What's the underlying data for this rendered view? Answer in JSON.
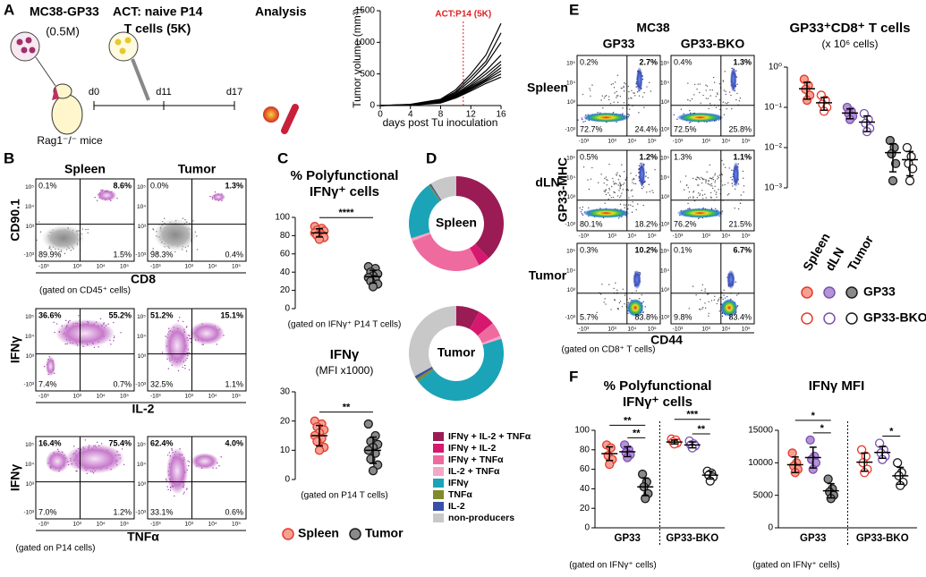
{
  "figure": {
    "A": {
      "label": "A",
      "tumor": "MC38-GP33",
      "tumor_dose": "(0.5M)",
      "act": "ACT: naive P14",
      "act_dose": "T cells (5K)",
      "analysis": "Analysis",
      "days": [
        "d0",
        "d11",
        "d17"
      ],
      "mice": "Rag1⁻/⁻ mice"
    },
    "B": {
      "label": "B",
      "columns": [
        "Spleen",
        "Tumor"
      ],
      "rows": [
        {
          "y_label": "CD90.1",
          "x_label": "CD8",
          "gate": "(gated on CD45⁺ cells)",
          "quadrants": [
            [
              "0.1%",
              "8.6%",
              "89.9%",
              "1.5%"
            ],
            [
              "0.0%",
              "1.3%",
              "98.3%",
              "0.4%"
            ]
          ]
        },
        {
          "y_label": "IFNγ",
          "x_label": "IL-2",
          "quadrants": [
            [
              "36.6%",
              "55.2%",
              "7.4%",
              "0.7%"
            ],
            [
              "51.2%",
              "15.1%",
              "32.5%",
              "1.1%"
            ]
          ]
        },
        {
          "y_label": "IFNγ",
          "x_label": "TNFα",
          "gate": "(gated on P14 cells)",
          "quadrants": [
            [
              "16.4%",
              "75.4%",
              "7.0%",
              "1.2%"
            ],
            [
              "62.4%",
              "4.0%",
              "33.1%",
              "0.6%"
            ]
          ]
        }
      ]
    },
    "C": {
      "label": "C"
    },
    "D": {
      "label": "D"
    },
    "E": {
      "label": "E",
      "title": "MC38",
      "columns": [
        "GP33",
        "GP33-BKO"
      ],
      "y_label": "GP33-MHC",
      "x_label": "CD44",
      "gate": "(gated on CD8⁺ T cells)",
      "rows": [
        {
          "name": "Spleen",
          "quadrants": [
            [
              "0.2%",
              "2.7%",
              "72.7%",
              "24.4%"
            ],
            [
              "0.4%",
              "1.3%",
              "72.5%",
              "25.8%"
            ]
          ]
        },
        {
          "name": "dLN",
          "quadrants": [
            [
              "0.5%",
              "1.2%",
              "80.1%",
              "18.2%"
            ],
            [
              "1.3%",
              "1.1%",
              "76.2%",
              "21.5%"
            ]
          ]
        },
        {
          "name": "Tumor",
          "quadrants": [
            [
              "0.3%",
              "10.2%",
              "5.7%",
              "83.8%"
            ],
            [
              "0.1%",
              "6.7%",
              "9.8%",
              "83.4%"
            ]
          ]
        }
      ]
    },
    "F": {
      "label": "F"
    },
    "flow_ticks": [
      "-10³",
      "10³",
      "10⁴",
      "10⁵"
    ]
  },
  "chart_data": [
    {
      "type": "line",
      "y_label": "Tumor volume (mm³)",
      "x_label": "days post Tu inoculation",
      "x": [
        0,
        4,
        8,
        10,
        12,
        14,
        16
      ],
      "series": [
        {
          "color": "#000000",
          "values": [
            0,
            20,
            100,
            250,
            500,
            800,
            1300
          ]
        },
        {
          "color": "#000000",
          "values": [
            0,
            15,
            90,
            220,
            450,
            700,
            1150
          ]
        },
        {
          "color": "#000000",
          "values": [
            0,
            15,
            80,
            200,
            400,
            650,
            1000
          ]
        },
        {
          "color": "#000000",
          "values": [
            0,
            10,
            70,
            180,
            350,
            550,
            800
          ]
        },
        {
          "color": "#000000",
          "values": [
            0,
            10,
            70,
            170,
            320,
            500,
            700
          ]
        },
        {
          "color": "#000000",
          "values": [
            0,
            12,
            60,
            160,
            300,
            450,
            650
          ]
        },
        {
          "color": "#000000",
          "values": [
            0,
            10,
            60,
            150,
            280,
            420,
            600
          ]
        },
        {
          "color": "#000000",
          "values": [
            0,
            8,
            50,
            140,
            270,
            400,
            550
          ]
        },
        {
          "color": "#000000",
          "values": [
            0,
            8,
            50,
            130,
            250,
            380,
            500
          ]
        },
        {
          "color": "#000000",
          "values": [
            0,
            5,
            40,
            120,
            230,
            350,
            450
          ]
        }
      ],
      "xlim": [
        0,
        16
      ],
      "ylim": [
        0,
        1500
      ],
      "xticks": [
        0,
        4,
        8,
        12,
        16
      ],
      "yticks": [
        0,
        500,
        1000,
        1500
      ],
      "annotation": {
        "text": "ACT:P14 (5K)",
        "x": 11,
        "color": "#e02020"
      }
    },
    {
      "type": "dot",
      "title": [
        "% Polyfunctional",
        "IFNγ⁺ cells"
      ],
      "note": "(gated on IFNγ⁺ P14 T cells)",
      "ylim": [
        0,
        100
      ],
      "yticks": [
        0,
        20,
        40,
        60,
        80,
        100
      ],
      "series": [
        {
          "name": "Spleen",
          "color": "#f6a091",
          "edge": "#e5392c",
          "values": [
            90,
            88,
            86,
            85,
            84,
            83,
            81,
            80,
            78,
            76
          ],
          "mean": 83,
          "sd": 4.5
        },
        {
          "name": "Tumor",
          "color": "#8a8a8a",
          "edge": "#1a1a1a",
          "values": [
            46,
            44,
            40,
            38,
            36,
            34,
            32,
            30,
            27,
            24
          ],
          "mean": 35,
          "sd": 7
        }
      ],
      "comparisons": [
        {
          "label": "****",
          "series": [
            0,
            1
          ]
        }
      ]
    },
    {
      "type": "dot",
      "title": [
        "IFNγ",
        "(MFI x1000)"
      ],
      "note": "(gated on P14 T cells)",
      "ylim": [
        0,
        30
      ],
      "yticks": [
        0,
        10,
        20,
        30
      ],
      "series": [
        {
          "name": "Spleen",
          "color": "#f6a091",
          "edge": "#e5392c",
          "values": [
            20,
            19,
            18,
            17,
            16,
            15,
            14,
            13,
            11,
            10
          ],
          "mean": 15,
          "sd": 3.5
        },
        {
          "name": "Tumor",
          "color": "#8a8a8a",
          "edge": "#1a1a1a",
          "values": [
            19,
            15,
            13,
            12,
            11,
            10,
            9,
            7,
            5,
            3
          ],
          "mean": 10,
          "sd": 4.5
        }
      ],
      "comparisons": [
        {
          "label": "**",
          "series": [
            0,
            1
          ]
        }
      ]
    },
    {
      "type": "pie",
      "donut": true,
      "categories": [
        "IFNγ + IL-2 + TNFα",
        "IFNγ + IL-2",
        "IFNγ + TNFα",
        "IL-2 + TNFα",
        "IFNγ",
        "TNFα",
        "IL-2",
        "non-producers"
      ],
      "colors": [
        "#9b1b55",
        "#d6186f",
        "#ef6a9f",
        "#f4a7c6",
        "#1ba3b8",
        "#7f8a2a",
        "#3a4fa8",
        "#c8c8c8"
      ],
      "series": [
        {
          "name": "Spleen",
          "values": [
            38,
            4,
            27,
            1,
            20,
            0.5,
            0.5,
            9
          ]
        },
        {
          "name": "Tumor",
          "values": [
            8,
            6,
            5,
            1,
            45,
            1,
            1,
            33
          ]
        }
      ]
    },
    {
      "type": "dot",
      "log": true,
      "title": [
        "GP33⁺CD8⁺ T cells",
        "(x 10⁶ cells)"
      ],
      "ylim": [
        0.001,
        1
      ],
      "yticks": [
        {
          "value": 0.001,
          "label": "10⁻³"
        },
        {
          "value": 0.01,
          "label": "10⁻²"
        },
        {
          "value": 0.1,
          "label": "10⁻¹"
        },
        {
          "value": 1,
          "label": "10⁰"
        }
      ],
      "categories": [
        "GP33",
        "GP33-BKO"
      ],
      "filled": [
        true,
        false
      ],
      "series": [
        {
          "name": "Spleen",
          "color": "#f6a091",
          "edge": "#e5392c",
          "values": [
            [
              0.5,
              0.35,
              0.28,
              0.2,
              0.15
            ],
            [
              0.2,
              0.15,
              0.12,
              0.1,
              0.08
            ]
          ],
          "mean": [
            0.29,
            0.13
          ],
          "sd": [
            0.13,
            0.045
          ]
        },
        {
          "name": "dLN",
          "color": "#b493d6",
          "edge": "#7b4fb0",
          "values": [
            [
              0.1,
              0.08,
              0.07,
              0.06,
              0.05
            ],
            [
              0.07,
              0.05,
              0.04,
              0.03,
              0.025
            ]
          ],
          "mean": [
            0.072,
            0.043
          ],
          "sd": [
            0.02,
            0.018
          ]
        },
        {
          "name": "Tumor",
          "color": "#8a8a8a",
          "edge": "#1a1a1a",
          "values": [
            [
              0.015,
              0.01,
              0.007,
              0.004,
              0.0015
            ],
            [
              0.01,
              0.006,
              0.004,
              0.003,
              0.0015
            ]
          ],
          "mean": [
            0.0075,
            0.005
          ],
          "sd": [
            0.005,
            0.003
          ]
        }
      ]
    },
    {
      "type": "dot",
      "title": [
        "% Polyfunctional",
        "IFNγ⁺ cells"
      ],
      "note": "(gated on IFNγ⁺ cells)",
      "ylim": [
        0,
        100
      ],
      "yticks": [
        0,
        20,
        40,
        60,
        80,
        100
      ],
      "categories": [
        "GP33",
        "GP33-BKO"
      ],
      "filled": [
        true,
        false
      ],
      "series": [
        {
          "color": "#f6a091",
          "edge": "#e5392c",
          "values": [
            [
              85,
              82,
              74,
              70,
              65
            ],
            [
              91,
              90,
              88,
              87,
              86
            ]
          ],
          "mean": [
            76,
            88
          ],
          "sd": [
            7,
            2
          ]
        },
        {
          "color": "#b493d6",
          "edge": "#7b4fb0",
          "values": [
            [
              85,
              80,
              77,
              75,
              72
            ],
            [
              89,
              86,
              85,
              84,
              82
            ]
          ],
          "mean": [
            78,
            85
          ],
          "sd": [
            5,
            3
          ]
        },
        {
          "color": "#8a8a8a",
          "edge": "#1a1a1a",
          "values": [
            [
              55,
              47,
              42,
              35,
              30
            ],
            [
              58,
              56,
              54,
              52,
              48
            ]
          ],
          "mean": [
            42,
            54
          ],
          "sd": [
            9,
            4
          ]
        }
      ],
      "comparisons": [
        {
          "label": "**",
          "category": 0,
          "series": [
            0,
            2
          ]
        },
        {
          "label": "**",
          "category": 0,
          "series": [
            1,
            2
          ]
        },
        {
          "label": "***",
          "category": 1,
          "series": [
            0,
            2
          ]
        },
        {
          "label": "**",
          "category": 1,
          "series": [
            1,
            2
          ]
        }
      ]
    },
    {
      "type": "dot",
      "title": [
        "IFNγ MFI"
      ],
      "note": "(gated on IFNγ⁺ cells)",
      "ylim": [
        0,
        15000
      ],
      "yticks": [
        0,
        5000,
        10000,
        15000
      ],
      "categories": [
        "GP33",
        "GP33-BKO"
      ],
      "filled": [
        true,
        false
      ],
      "series": [
        {
          "color": "#f6a091",
          "edge": "#e5392c",
          "values": [
            [
              11500,
              10000,
              9500,
              9000,
              8500
            ],
            [
              12000,
              11000,
              10000,
              9000,
              8500
            ]
          ],
          "mean": [
            9700,
            10100
          ],
          "sd": [
            1200,
            1400
          ]
        },
        {
          "color": "#b493d6",
          "edge": "#7b4fb0",
          "values": [
            [
              13500,
              11000,
              10500,
              10000,
              9000
            ],
            [
              13000,
              12000,
              11500,
              11000,
              10500
            ]
          ],
          "mean": [
            10800,
            11600
          ],
          "sd": [
            1600,
            900
          ]
        },
        {
          "color": "#8a8a8a",
          "edge": "#1a1a1a",
          "values": [
            [
              7500,
              6000,
              5500,
              5000,
              4500
            ],
            [
              10000,
              8500,
              8000,
              7000,
              6500
            ]
          ],
          "mean": [
            5700,
            8000
          ],
          "sd": [
            1100,
            1300
          ]
        }
      ],
      "comparisons": [
        {
          "label": "*",
          "category": 0,
          "series": [
            0,
            2
          ]
        },
        {
          "label": "*",
          "category": 0,
          "series": [
            1,
            2
          ]
        },
        {
          "label": "*",
          "category": 1,
          "series": [
            1,
            2
          ]
        }
      ]
    }
  ]
}
